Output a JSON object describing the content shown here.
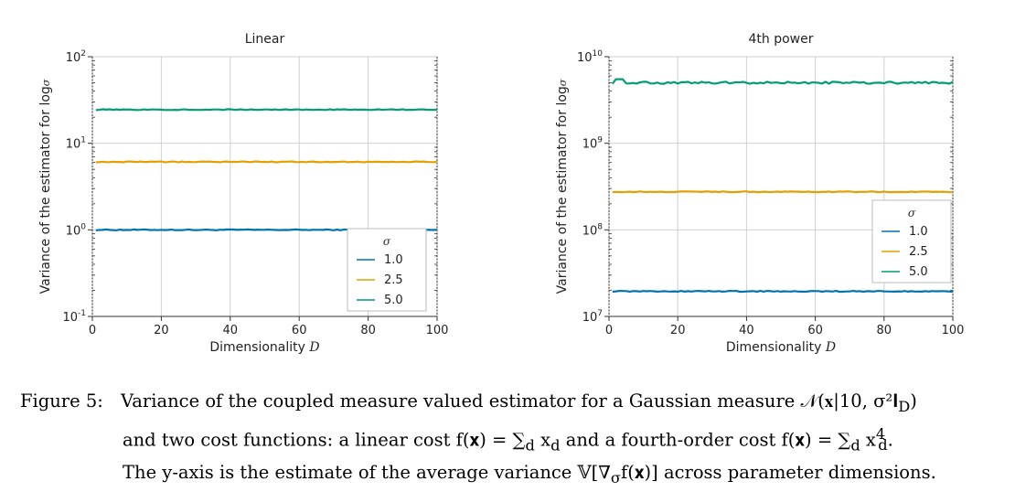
{
  "chart_data": [
    {
      "type": "line",
      "title": "Linear",
      "xlabel": "Dimensionality",
      "xlabel_var": "D",
      "ylabel": "Variance of the estimator for log",
      "ylabel_var": "σ",
      "xlim": [
        0,
        100
      ],
      "ylim": [
        0.1,
        100
      ],
      "yscale": "log",
      "grid": true,
      "x_ticks": [
        "0",
        "20",
        "40",
        "60",
        "80",
        "100"
      ],
      "y_ticks": [
        {
          "base": "10",
          "exp": "-1",
          "value": 0.1
        },
        {
          "base": "10",
          "exp": "0",
          "value": 1
        },
        {
          "base": "10",
          "exp": "1",
          "value": 10
        },
        {
          "base": "10",
          "exp": "2",
          "value": 100
        }
      ],
      "legend": {
        "title": "σ",
        "placement": "lower-right"
      },
      "series": [
        {
          "name": "1.0",
          "color": "#0072b2",
          "y": 1.0
        },
        {
          "name": "2.5",
          "color": "#e69f00",
          "y": 6.1
        },
        {
          "name": "5.0",
          "color": "#009e73",
          "y": 24.5
        }
      ]
    },
    {
      "type": "line",
      "title": "4th power",
      "xlabel": "Dimensionality",
      "xlabel_var": "D",
      "ylabel": "Variance of the estimator for log",
      "ylabel_var": "σ",
      "xlim": [
        0,
        100
      ],
      "ylim": [
        10000000,
        10000000000
      ],
      "yscale": "log",
      "grid": true,
      "x_ticks": [
        "0",
        "20",
        "40",
        "60",
        "80",
        "100"
      ],
      "y_ticks": [
        {
          "base": "10",
          "exp": "7",
          "value": 10000000
        },
        {
          "base": "10",
          "exp": "8",
          "value": 100000000
        },
        {
          "base": "10",
          "exp": "9",
          "value": 1000000000
        },
        {
          "base": "10",
          "exp": "10",
          "value": 10000000000
        }
      ],
      "legend": {
        "title": "σ",
        "placement": "center-right"
      },
      "series": [
        {
          "name": "1.0",
          "color": "#0072b2",
          "y": 19500000
        },
        {
          "name": "2.5",
          "color": "#e69f00",
          "y": 275000000
        },
        {
          "name": "5.0",
          "color": "#009e73",
          "y": 5000000000
        }
      ]
    }
  ],
  "caption": {
    "label": "Figure 5:",
    "line1": "Variance of the coupled measure valued estimator for a Gaussian measure 𝒩(𝐱|10, σ²𝐈",
    "line1_sub": "D",
    "line1_end": ")",
    "line2": "and two cost functions: a linear cost f(𝐱) = ∑",
    "line2_sub": "d",
    "line2_mid": " x",
    "line2_sub2": "d",
    "line2_tail": " and a fourth-order cost f(𝐱) = ∑",
    "line2_sub3": "d",
    "line2_tail2": " x",
    "line2_sup": "4",
    "line2_sub4": "d",
    "line2_end": ".",
    "line3": "The y-axis is the estimate of the average variance 𝕍[∇",
    "line3_sub": "σ",
    "line3_end": "f(𝐱)] across parameter dimensions."
  }
}
